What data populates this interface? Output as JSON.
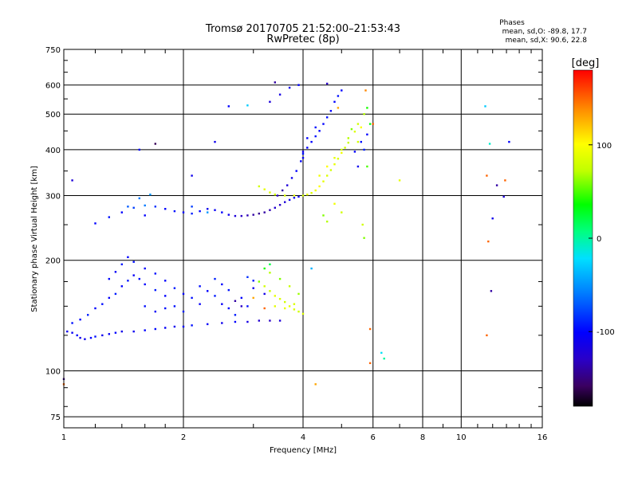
{
  "header": {
    "title_line1": "Tromsø 20170705 21:52:00–21:53:43",
    "title_line2": "RwPretec (8p)",
    "phases_title": "Phases",
    "phases_o": "mean, sd,O: -89.8, 17.7",
    "phases_x": "mean, sd,X:  90.6, 22.8"
  },
  "colorbar": {
    "unit_label": "[deg]",
    "min": -180,
    "max": 180,
    "ticks": [
      {
        "value": 100,
        "label": "100"
      },
      {
        "value": 0,
        "label": "0"
      },
      {
        "value": -100,
        "label": "-100"
      }
    ]
  },
  "chart_data": {
    "type": "scatter",
    "title": "Tromsø 20170705 21:52:00–21:53:43",
    "subtitle": "RwPretec (8p)",
    "xlabel": "Frequency [MHz]",
    "ylabel": "Stationary phase Virtual Height [km]",
    "x_scale": "log",
    "y_scale": "log",
    "xlim": [
      1,
      16
    ],
    "ylim": [
      70,
      750
    ],
    "grid": true,
    "x_ticks": [
      {
        "value": 1,
        "label": "1",
        "major": true
      },
      {
        "value": 2,
        "label": "2",
        "major": true
      },
      {
        "value": 4,
        "label": "4",
        "major": true
      },
      {
        "value": 6,
        "label": "6",
        "major": true
      },
      {
        "value": 8,
        "label": "8",
        "major": true
      },
      {
        "value": 10,
        "label": "10",
        "major": true
      },
      {
        "value": 16,
        "label": "16",
        "major": false
      }
    ],
    "x_minor_ticks": [
      1.2,
      1.4,
      1.6,
      1.8,
      3,
      5,
      7,
      9,
      11,
      12,
      13,
      14,
      15
    ],
    "y_ticks": [
      {
        "value": 75,
        "label": "75"
      },
      {
        "value": 100,
        "label": "100"
      },
      {
        "value": 200,
        "label": "200"
      },
      {
        "value": 300,
        "label": "300"
      },
      {
        "value": 400,
        "label": "400"
      },
      {
        "value": 500,
        "label": "500"
      },
      {
        "value": 600,
        "label": "600"
      },
      {
        "value": 750,
        "label": "750"
      }
    ],
    "y_minor_ticks": [
      80,
      90,
      125,
      150,
      175,
      250,
      350,
      450,
      550,
      650,
      700
    ],
    "series": [
      {
        "points": [
          [
            1.02,
            128,
            -110
          ],
          [
            1.05,
            127,
            -105
          ],
          [
            1.08,
            125,
            -100
          ],
          [
            1.1,
            123,
            -112
          ],
          [
            1.13,
            122,
            -108
          ],
          [
            1.17,
            123,
            -100
          ],
          [
            1.2,
            124,
            -95
          ],
          [
            1.25,
            125,
            -110
          ],
          [
            1.3,
            126,
            -105
          ],
          [
            1.35,
            127,
            -100
          ],
          [
            1.4,
            128,
            -112
          ],
          [
            1.5,
            128,
            -108
          ],
          [
            1.6,
            129,
            -100
          ],
          [
            1.7,
            130,
            -98
          ],
          [
            1.8,
            131,
            -104
          ],
          [
            1.9,
            132,
            -110
          ],
          [
            2.0,
            132,
            -100
          ],
          [
            2.1,
            133,
            -95
          ],
          [
            2.3,
            134,
            -104
          ],
          [
            2.5,
            135,
            -110
          ],
          [
            2.7,
            136,
            -100
          ],
          [
            2.9,
            136,
            -115
          ],
          [
            3.1,
            137,
            -125
          ],
          [
            3.3,
            137,
            -130
          ],
          [
            3.5,
            137,
            -120
          ],
          [
            1.05,
            135,
            -95
          ],
          [
            1.1,
            138,
            -100
          ],
          [
            1.15,
            142,
            -90
          ],
          [
            1.2,
            148,
            -100
          ],
          [
            1.25,
            152,
            -96
          ],
          [
            1.3,
            158,
            -102
          ],
          [
            1.35,
            162,
            -92
          ],
          [
            1.4,
            170,
            -100
          ],
          [
            1.45,
            176,
            -94
          ],
          [
            1.5,
            182,
            -104
          ],
          [
            1.55,
            178,
            -96
          ],
          [
            1.6,
            172,
            -100
          ],
          [
            1.7,
            166,
            -92
          ],
          [
            1.8,
            160,
            -100
          ],
          [
            1.9,
            150,
            -95
          ],
          [
            2.0,
            145,
            -90
          ],
          [
            1.3,
            178,
            -98
          ],
          [
            1.35,
            186,
            -104
          ],
          [
            1.4,
            195,
            -92
          ],
          [
            1.45,
            204,
            -100
          ],
          [
            1.5,
            198,
            -95
          ],
          [
            1.6,
            190,
            -102
          ],
          [
            1.7,
            184,
            -96
          ],
          [
            1.8,
            176,
            -100
          ],
          [
            1.9,
            168,
            -92
          ],
          [
            2.0,
            162,
            -100
          ],
          [
            2.1,
            158,
            -96
          ],
          [
            2.2,
            152,
            -104
          ],
          [
            1.6,
            150,
            -96
          ],
          [
            1.7,
            145,
            -104
          ],
          [
            1.8,
            148,
            -95
          ],
          [
            2.2,
            170,
            -96
          ],
          [
            2.3,
            165,
            -100
          ],
          [
            2.4,
            160,
            -92
          ],
          [
            2.5,
            152,
            -104
          ],
          [
            2.6,
            148,
            -98
          ],
          [
            2.7,
            142,
            -92
          ],
          [
            2.4,
            178,
            -90
          ],
          [
            2.5,
            172,
            -100
          ],
          [
            2.6,
            166,
            -94
          ],
          [
            2.8,
            158,
            -100
          ],
          [
            2.9,
            150,
            -96
          ],
          [
            3.0,
            168,
            -110
          ],
          [
            3.2,
            162,
            -112
          ],
          [
            2.9,
            180,
            -85
          ],
          [
            3.0,
            176,
            -92
          ],
          [
            3.1,
            175,
            60
          ],
          [
            3.2,
            170,
            80
          ],
          [
            3.3,
            165,
            75
          ],
          [
            3.4,
            160,
            90
          ],
          [
            3.5,
            157,
            85
          ],
          [
            3.6,
            154,
            80
          ],
          [
            3.7,
            150,
            90
          ],
          [
            3.8,
            147,
            85
          ],
          [
            3.9,
            145,
            80
          ],
          [
            4.0,
            143,
            85
          ],
          [
            3.3,
            185,
            70
          ],
          [
            3.5,
            178,
            60
          ],
          [
            3.7,
            170,
            75
          ],
          [
            3.9,
            162,
            65
          ],
          [
            3.4,
            150,
            88
          ],
          [
            3.6,
            148,
            92
          ],
          [
            3.8,
            152,
            84
          ],
          [
            3.2,
            190,
            40
          ],
          [
            3.3,
            195,
            20
          ],
          [
            3.0,
            158,
            130
          ],
          [
            3.2,
            148,
            150
          ],
          [
            2.7,
            155,
            -140
          ],
          [
            2.8,
            150,
            -130
          ],
          [
            1.2,
            252,
            -100
          ],
          [
            1.3,
            262,
            -95
          ],
          [
            1.4,
            270,
            -100
          ],
          [
            1.5,
            278,
            -80
          ],
          [
            1.6,
            282,
            -60
          ],
          [
            1.7,
            280,
            -85
          ],
          [
            1.8,
            276,
            -100
          ],
          [
            1.9,
            272,
            -95
          ],
          [
            2.0,
            270,
            -100
          ],
          [
            2.1,
            268,
            -90
          ],
          [
            2.2,
            272,
            -100
          ],
          [
            2.3,
            276,
            -110
          ],
          [
            2.4,
            274,
            -105
          ],
          [
            2.5,
            270,
            -100
          ],
          [
            2.6,
            266,
            -110
          ],
          [
            2.7,
            264,
            -120
          ],
          [
            2.8,
            264,
            -130
          ],
          [
            2.9,
            265,
            -135
          ],
          [
            3.0,
            266,
            -140
          ],
          [
            3.1,
            268,
            -145
          ],
          [
            3.2,
            270,
            -140
          ],
          [
            3.3,
            274,
            -135
          ],
          [
            3.4,
            278,
            -125
          ],
          [
            3.5,
            283,
            -130
          ],
          [
            3.6,
            288,
            -120
          ],
          [
            3.7,
            292,
            -110
          ],
          [
            3.8,
            296,
            -100
          ],
          [
            3.9,
            298,
            -110
          ],
          [
            1.45,
            280,
            -70
          ],
          [
            1.55,
            295,
            -60
          ],
          [
            1.65,
            302,
            -50
          ],
          [
            1.6,
            265,
            -100
          ],
          [
            2.1,
            280,
            -80
          ],
          [
            2.3,
            270,
            -50
          ],
          [
            4.0,
            300,
            80
          ],
          [
            4.1,
            302,
            90
          ],
          [
            4.2,
            305,
            85
          ],
          [
            4.3,
            310,
            95
          ],
          [
            4.4,
            318,
            100
          ],
          [
            4.5,
            328,
            90
          ],
          [
            4.6,
            340,
            85
          ],
          [
            4.7,
            352,
            80
          ],
          [
            4.8,
            365,
            90
          ],
          [
            4.9,
            378,
            85
          ],
          [
            5.0,
            392,
            95
          ],
          [
            5.1,
            405,
            80
          ],
          [
            5.2,
            418,
            75
          ],
          [
            4.4,
            340,
            95
          ],
          [
            4.6,
            360,
            100
          ],
          [
            4.8,
            380,
            90
          ],
          [
            5.0,
            400,
            80
          ],
          [
            5.2,
            430,
            70
          ],
          [
            5.4,
            448,
            85
          ],
          [
            5.5,
            470,
            80
          ],
          [
            5.3,
            455,
            60
          ],
          [
            3.1,
            318,
            80
          ],
          [
            3.2,
            312,
            90
          ],
          [
            3.3,
            306,
            85
          ],
          [
            3.4,
            302,
            80
          ],
          [
            3.6,
            300,
            85
          ],
          [
            3.8,
            300,
            90
          ],
          [
            4.5,
            265,
            60
          ],
          [
            4.6,
            255,
            70
          ],
          [
            4.8,
            285,
            95
          ],
          [
            5.0,
            270,
            80
          ],
          [
            3.45,
            300,
            -130
          ],
          [
            3.55,
            310,
            -140
          ],
          [
            3.65,
            320,
            -120
          ],
          [
            3.75,
            335,
            -110
          ],
          [
            3.85,
            350,
            -100
          ],
          [
            3.95,
            372,
            -100
          ],
          [
            4.0,
            390,
            -95
          ],
          [
            4.1,
            405,
            -100
          ],
          [
            4.2,
            420,
            -100
          ],
          [
            4.3,
            435,
            -95
          ],
          [
            4.4,
            450,
            -100
          ],
          [
            4.5,
            470,
            -100
          ],
          [
            4.6,
            490,
            -95
          ],
          [
            4.7,
            510,
            -100
          ],
          [
            4.8,
            540,
            -100
          ],
          [
            4.9,
            560,
            -95
          ],
          [
            5.0,
            580,
            -100
          ],
          [
            3.3,
            540,
            -120
          ],
          [
            3.5,
            565,
            -115
          ],
          [
            3.7,
            590,
            -110
          ],
          [
            4.0,
            395,
            -110
          ],
          [
            4.1,
            430,
            -100
          ],
          [
            4.3,
            460,
            -95
          ],
          [
            5.4,
            395,
            -100
          ],
          [
            5.6,
            420,
            -95
          ],
          [
            5.7,
            400,
            -90
          ],
          [
            5.8,
            440,
            -100
          ],
          [
            5.5,
            360,
            -110
          ],
          [
            5.5,
            420,
            80
          ],
          [
            5.6,
            460,
            100
          ],
          [
            5.7,
            500,
            70
          ],
          [
            5.8,
            520,
            40
          ],
          [
            5.75,
            580,
            140
          ],
          [
            5.9,
            470,
            30
          ],
          [
            5.8,
            360,
            50
          ],
          [
            5.65,
            250,
            80
          ],
          [
            5.7,
            230,
            60
          ],
          [
            6.0,
            470,
            150
          ],
          [
            6.3,
            112,
            -20
          ],
          [
            6.4,
            108,
            0
          ],
          [
            5.9,
            105,
            150
          ],
          [
            5.9,
            130,
            150
          ],
          [
            4.3,
            92,
            130
          ],
          [
            4.2,
            190,
            -40
          ],
          [
            7.0,
            330,
            90
          ],
          [
            1.55,
            400,
            -100
          ],
          [
            1.7,
            415,
            -160
          ],
          [
            2.1,
            340,
            -110
          ],
          [
            2.4,
            420,
            -110
          ],
          [
            2.6,
            525,
            -100
          ],
          [
            2.9,
            528,
            -30
          ],
          [
            3.4,
            610,
            -140
          ],
          [
            3.9,
            600,
            -100
          ],
          [
            4.6,
            605,
            -130
          ],
          [
            4.9,
            520,
            130
          ],
          [
            4.0,
            380,
            -105
          ],
          [
            11.5,
            525,
            -30
          ],
          [
            11.8,
            415,
            -10
          ],
          [
            12.0,
            260,
            -110
          ],
          [
            12.3,
            320,
            -140
          ],
          [
            12.8,
            298,
            -120
          ],
          [
            13.2,
            420,
            -100
          ],
          [
            11.6,
            340,
            150
          ],
          [
            11.7,
            225,
            150
          ],
          [
            11.6,
            125,
            150
          ],
          [
            12.9,
            330,
            150
          ],
          [
            11.9,
            165,
            -140
          ],
          [
            1.0,
            95,
            -150
          ],
          [
            1.0,
            92,
            150
          ],
          [
            1.05,
            330,
            -120
          ]
        ]
      }
    ]
  }
}
